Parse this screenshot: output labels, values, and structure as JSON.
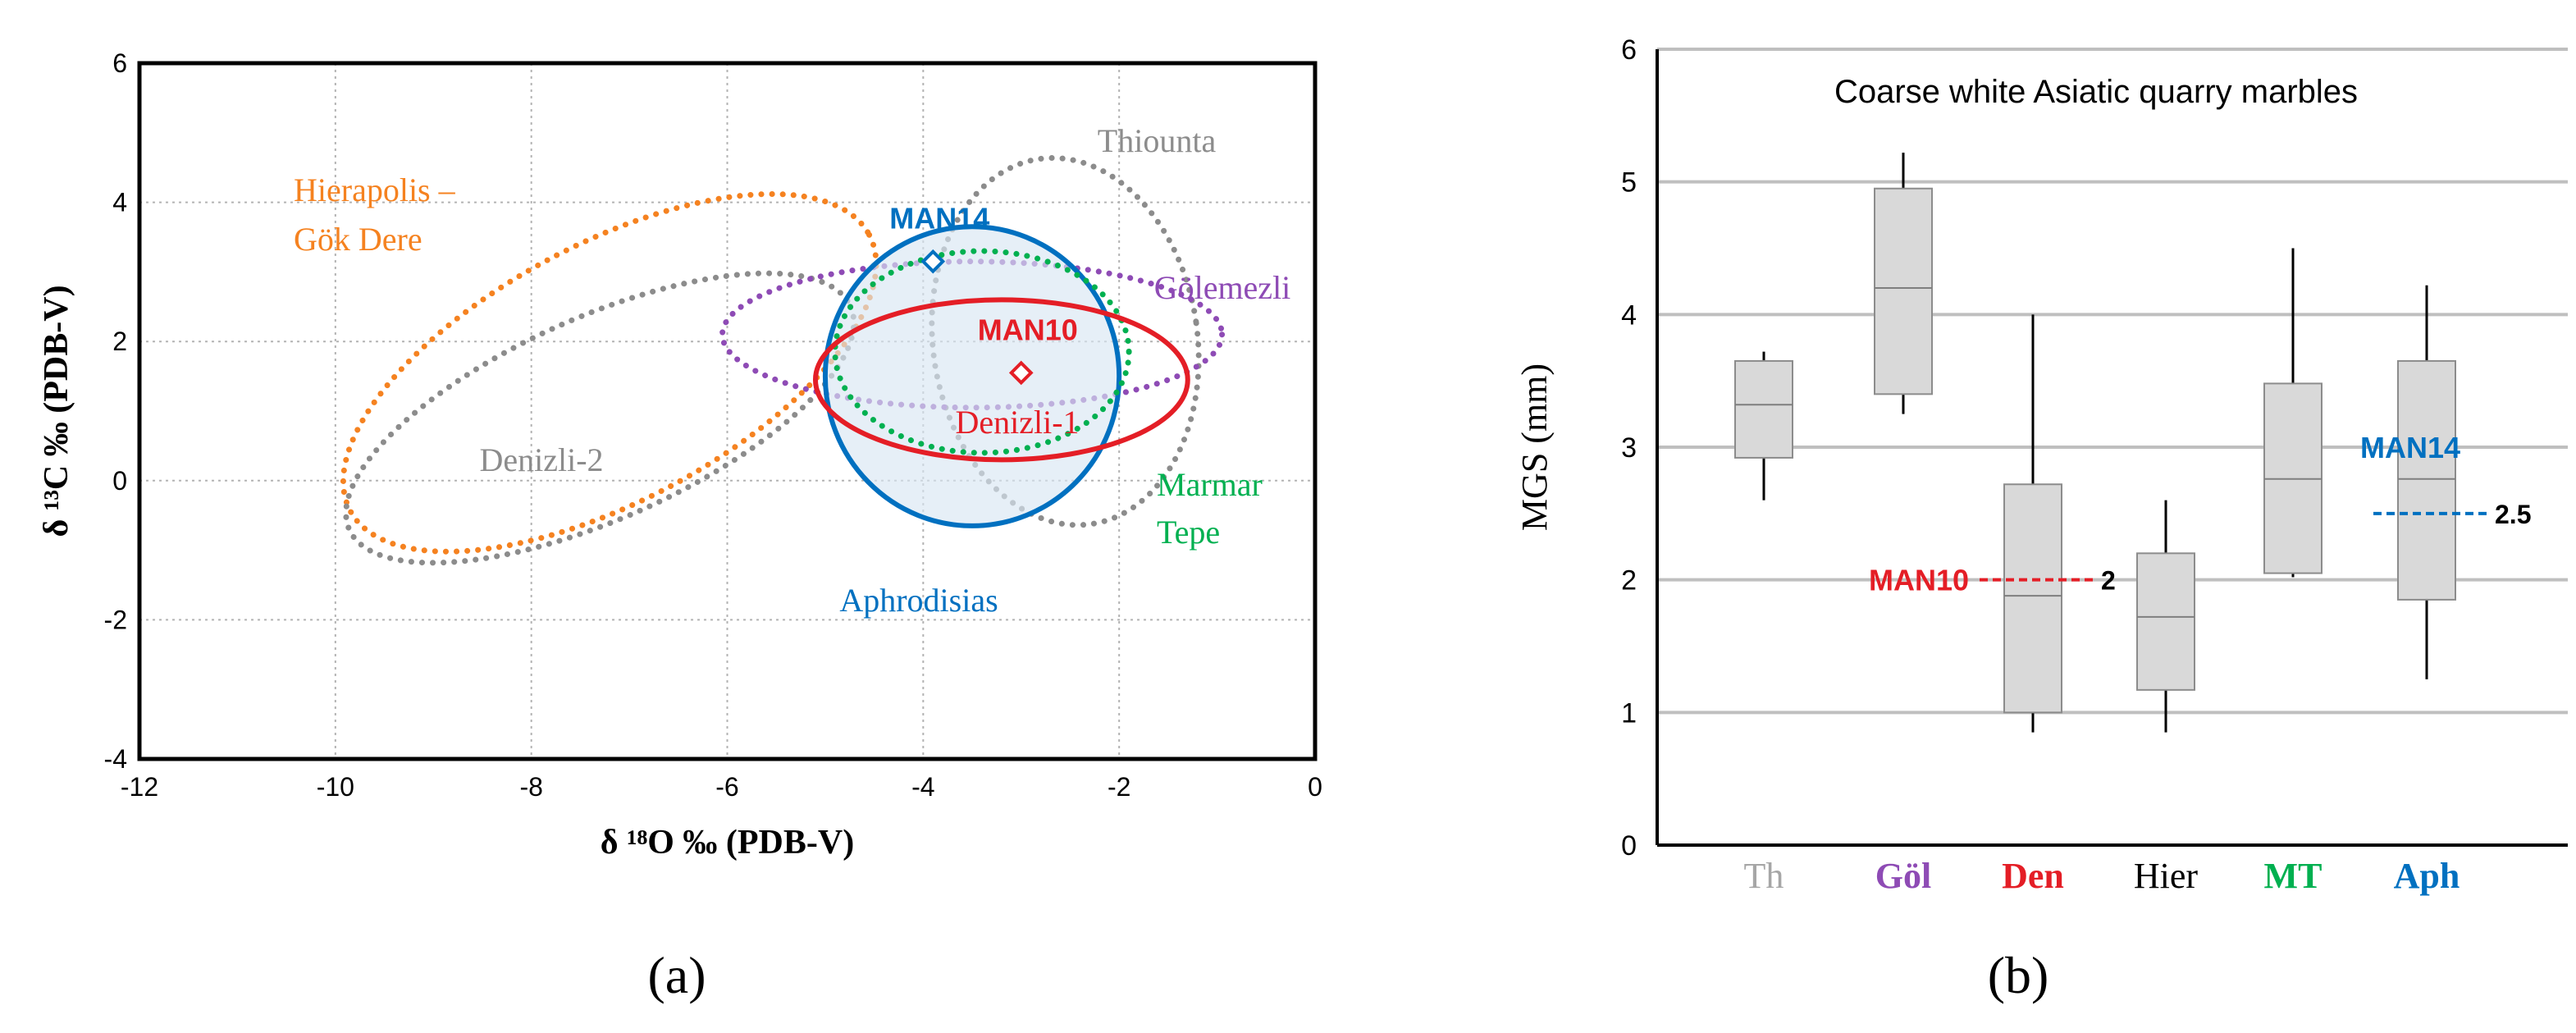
{
  "chart_data": [
    {
      "type": "scatter",
      "panel_label": "(a)",
      "xlabel": "δ ¹⁸O ‰ (PDB-V)",
      "ylabel": "δ ¹³C ‰ (PDB-V)",
      "xlim": [
        -12,
        0
      ],
      "ylim": [
        -4,
        6
      ],
      "x_ticks": [
        "-12",
        "-10",
        "-8",
        "-6",
        "-4",
        "-2",
        "0"
      ],
      "y_ticks": [
        "-4",
        "-2",
        "0",
        "2",
        "4",
        "6"
      ],
      "grid": true,
      "regions": [
        {
          "name": "Hierapolis – Gök Dere",
          "label_lines": [
            "Hierapolis –",
            "Gök Dere"
          ],
          "color": "#f58220",
          "style": "dotted",
          "cx": -7.2,
          "cy": 1.55,
          "rx": 3.0,
          "ry": 1.85,
          "angle_deg": 28
        },
        {
          "name": "Denizli-2",
          "label_lines": [
            "Denizli-2"
          ],
          "color": "#8c8c8c",
          "style": "dotted",
          "cx": -7.3,
          "cy": 0.9,
          "rx": 2.8,
          "ry": 1.45,
          "angle_deg": 24
        },
        {
          "name": "Thiounta",
          "label_lines": [
            "Thiounta"
          ],
          "color": "#8c8c8c",
          "style": "dotted",
          "cx": -2.55,
          "cy": 2.0,
          "rx": 1.35,
          "ry": 2.65,
          "angle_deg": 8
        },
        {
          "name": "Gölemezli",
          "label_lines": [
            "Gölemezli"
          ],
          "color": "#8e4bb5",
          "style": "dotted",
          "cx": -3.5,
          "cy": 2.1,
          "rx": 2.55,
          "ry": 1.05,
          "angle_deg": 0
        },
        {
          "name": "Aphrodisias",
          "label_lines": [
            "Aphrodisias"
          ],
          "color": "#0070c0",
          "style": "solid",
          "fill": "#d9e6f3",
          "cx": -3.5,
          "cy": 1.5,
          "rx": 1.5,
          "ry": 2.15,
          "angle_deg": 0
        },
        {
          "name": "Marmar Tepe",
          "label_lines": [
            "Marmar",
            "Tepe"
          ],
          "color": "#00b050",
          "style": "dotted",
          "cx": -3.4,
          "cy": 1.85,
          "rx": 1.5,
          "ry": 1.45,
          "angle_deg": 0
        },
        {
          "name": "Denizli-1",
          "label_lines": [
            "Denizli-1"
          ],
          "color": "#e41e26",
          "style": "solid",
          "cx": -3.2,
          "cy": 1.45,
          "rx": 1.9,
          "ry": 1.15,
          "angle_deg": 0
        }
      ],
      "points": [
        {
          "name": "MAN14",
          "x": -3.9,
          "y": 3.15,
          "color": "#0070c0"
        },
        {
          "name": "MAN10",
          "x": -3.0,
          "y": 1.55,
          "color": "#e41e26"
        }
      ]
    },
    {
      "type": "box",
      "panel_label": "(b)",
      "title": "Coarse white Asiatic quarry marbles",
      "ylabel": "MGS (mm)",
      "ylim": [
        0,
        6
      ],
      "y_ticks": [
        "0",
        "1",
        "2",
        "3",
        "4",
        "5",
        "6"
      ],
      "grid": true,
      "categories": [
        {
          "label": "Th",
          "color": "#a6a6a6",
          "min": 2.6,
          "q1": 2.92,
          "median": 3.32,
          "q3": 3.65,
          "max": 3.72
        },
        {
          "label": "Göl",
          "color": "#8e4bb5",
          "min": 3.25,
          "q1": 3.4,
          "median": 4.2,
          "q3": 4.95,
          "max": 5.22
        },
        {
          "label": "Den",
          "color": "#e41e26",
          "min": 0.85,
          "q1": 1.0,
          "median": 1.88,
          "q3": 2.72,
          "max": 4.0
        },
        {
          "label": "Hier",
          "color": "#000000",
          "min": 0.85,
          "q1": 1.17,
          "median": 1.72,
          "q3": 2.2,
          "max": 2.6
        },
        {
          "label": "MT",
          "color": "#00b050",
          "min": 2.02,
          "q1": 2.05,
          "median": 2.76,
          "q3": 3.48,
          "max": 4.5
        },
        {
          "label": "Aph",
          "color": "#0070c0",
          "min": 1.25,
          "q1": 1.85,
          "median": 2.76,
          "q3": 3.65,
          "max": 4.22
        }
      ],
      "annotations": [
        {
          "name": "MAN10",
          "value": 2,
          "value_label": "2",
          "category": "Den",
          "color": "#e41e26"
        },
        {
          "name": "MAN14",
          "value": 2.5,
          "value_label": "2.5",
          "category": "Aph",
          "color": "#0070c0"
        }
      ]
    }
  ]
}
